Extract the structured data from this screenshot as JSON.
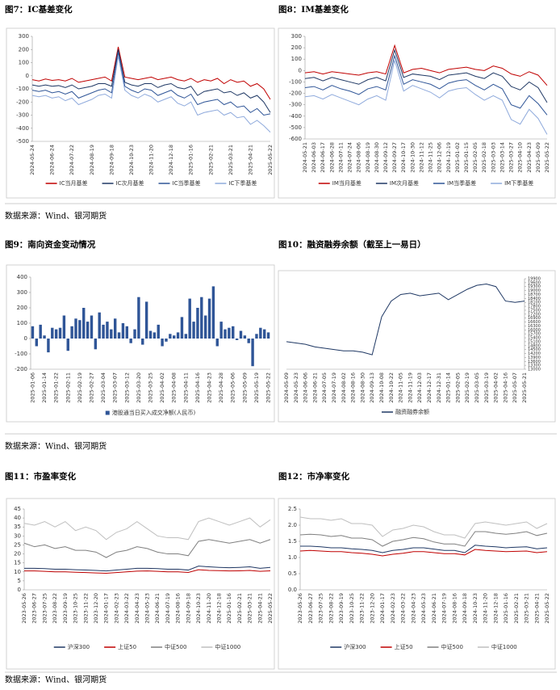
{
  "sources": [
    "数据来源：Wind、银河期货",
    "数据来源：Wind、银河期货",
    "数据来源：Wind、银河期货"
  ],
  "chart_data": [
    {
      "type": "line",
      "title": "图7：IC基差变化",
      "categories": [
        "2024-05-24",
        null,
        null,
        "2024-06-24",
        null,
        null,
        "2024-07-22",
        null,
        null,
        "2024-08-19",
        null,
        null,
        "2024-09-18",
        null,
        null,
        "2024-10-23",
        null,
        null,
        "2024-11-20",
        null,
        null,
        "2024-12-18",
        null,
        null,
        "2025-01-16",
        null,
        null,
        "2025-02-21",
        null,
        null,
        "2025-03-21",
        null,
        null,
        "2025-04-21",
        null,
        null,
        "2025-05-22"
      ],
      "series": [
        {
          "name": "IC当月基差",
          "color": "#c00000",
          "values": [
            -30,
            -40,
            -25,
            -35,
            -30,
            -40,
            -20,
            -50,
            -40,
            -30,
            -20,
            -10,
            -40,
            220,
            -10,
            -20,
            -30,
            -20,
            -10,
            -30,
            -20,
            -10,
            -30,
            -40,
            -20,
            -50,
            -30,
            -40,
            -20,
            -60,
            -30,
            -50,
            -40,
            -80,
            -60,
            -100,
            -180
          ]
        },
        {
          "name": "IC次月基差",
          "color": "#1f3864",
          "values": [
            -70,
            -80,
            -70,
            -80,
            -75,
            -90,
            -70,
            -100,
            -90,
            -80,
            -60,
            -60,
            -80,
            200,
            -50,
            -70,
            -80,
            -60,
            -60,
            -90,
            -70,
            -60,
            -90,
            -100,
            -80,
            -150,
            -120,
            -110,
            -100,
            -130,
            -120,
            -150,
            -130,
            -170,
            -150,
            -200,
            -280
          ]
        },
        {
          "name": "IC当季基差",
          "color": "#2f5597",
          "values": [
            -110,
            -120,
            -110,
            -130,
            -120,
            -140,
            -120,
            -170,
            -150,
            -130,
            -110,
            -100,
            -130,
            180,
            -80,
            -110,
            -130,
            -100,
            -110,
            -150,
            -130,
            -110,
            -150,
            -170,
            -140,
            -220,
            -200,
            -190,
            -180,
            -220,
            -200,
            -240,
            -230,
            -280,
            -250,
            -300,
            -290
          ]
        },
        {
          "name": "IC下季基差",
          "color": "#8faadc",
          "values": [
            -150,
            -160,
            -150,
            -170,
            -160,
            -190,
            -170,
            -220,
            -200,
            -180,
            -150,
            -140,
            -170,
            150,
            -110,
            -150,
            -170,
            -140,
            -160,
            -200,
            -180,
            -160,
            -210,
            -230,
            -200,
            -300,
            -280,
            -270,
            -260,
            -300,
            -280,
            -320,
            -310,
            -370,
            -340,
            -380,
            -430
          ]
        }
      ],
      "ylim": [
        -500,
        300
      ],
      "yticks": [
        300,
        200,
        100,
        0,
        -100,
        -200,
        -300,
        -400,
        -500
      ]
    },
    {
      "type": "line",
      "title": "图8：IM基差变化",
      "categories": [
        "2024-05-21",
        "2024-06-03",
        "2024-06-17",
        "2024-06-28",
        "2024-07-11",
        "2024-07-24",
        "2024-08-06",
        "2024-08-19",
        "2024-08-30",
        "2024-09-12",
        "2024-09-27",
        "2024-10-17",
        "2024-10-30",
        "2024-11-12",
        "2024-11-25",
        "2024-12-06",
        "2024-12-19",
        "2025-01-02",
        "2025-01-15",
        "2025-02-05",
        "2025-02-18",
        "2025-03-03",
        "2025-03-14",
        "2025-03-27",
        "2025-04-10",
        "2025-04-23",
        "2025-05-09",
        "2025-05-22"
      ],
      "series": [
        {
          "name": "IM当月基差",
          "color": "#c00000",
          "values": [
            -20,
            -10,
            -30,
            -10,
            -20,
            -30,
            -40,
            -20,
            -10,
            -30,
            220,
            -20,
            10,
            20,
            0,
            -20,
            10,
            20,
            30,
            10,
            0,
            40,
            20,
            -30,
            -50,
            -10,
            -40,
            -130
          ]
        },
        {
          "name": "IM次月基差",
          "color": "#1f3864",
          "values": [
            -70,
            -60,
            -90,
            -60,
            -80,
            -100,
            -120,
            -80,
            -60,
            -90,
            180,
            -60,
            -30,
            -40,
            -50,
            -80,
            -40,
            -30,
            -20,
            -50,
            -70,
            -20,
            -50,
            -140,
            -170,
            -100,
            -150,
            -280
          ]
        },
        {
          "name": "IM当季基差",
          "color": "#2f5597",
          "values": [
            -150,
            -140,
            -170,
            -130,
            -160,
            -180,
            -210,
            -160,
            -140,
            -170,
            130,
            -120,
            -80,
            -100,
            -120,
            -160,
            -110,
            -90,
            -80,
            -130,
            -170,
            -120,
            -160,
            -300,
            -330,
            -220,
            -290,
            -390
          ]
        },
        {
          "name": "IM下季基差",
          "color": "#8faadc",
          "values": [
            -230,
            -220,
            -250,
            -210,
            -240,
            -270,
            -300,
            -250,
            -220,
            -260,
            90,
            -180,
            -130,
            -160,
            -190,
            -240,
            -180,
            -160,
            -150,
            -210,
            -260,
            -220,
            -260,
            -430,
            -470,
            -340,
            -420,
            -560
          ]
        }
      ],
      "ylim": [
        -600,
        300
      ],
      "yticks": [
        300,
        200,
        100,
        0,
        -100,
        -200,
        -300,
        -400,
        -500,
        -600
      ]
    },
    {
      "type": "bar",
      "title": "图9：南向资金变动情况",
      "categories": [
        "2025-01-06",
        null,
        null,
        "2025-01-14",
        null,
        null,
        "2025-01-22",
        null,
        null,
        "2025-02-11",
        null,
        null,
        "2025-02-19",
        null,
        null,
        "2025-02-27",
        null,
        null,
        "2025-03-04",
        null,
        null,
        "2025-03-07",
        null,
        null,
        "2025-03-12",
        null,
        null,
        "2025-03-20",
        null,
        null,
        "2025-03-25",
        null,
        null,
        "2025-04-02",
        null,
        null,
        "2025-04-08",
        null,
        null,
        "2025-04-11",
        null,
        null,
        "2025-04-16",
        null,
        null,
        "2025-04-23",
        null,
        null,
        "2025-04-28",
        null,
        null,
        "2025-05-06",
        null,
        null,
        "2025-05-09",
        null,
        null,
        "2025-05-19",
        null,
        null,
        "2025-05-22"
      ],
      "series": [
        {
          "name": "港股通当日买入成交净额(人民币)",
          "color": "#2f5597",
          "values": [
            80,
            -50,
            90,
            20,
            -90,
            70,
            60,
            70,
            150,
            -80,
            80,
            130,
            120,
            200,
            110,
            150,
            -70,
            170,
            90,
            110,
            60,
            130,
            40,
            100,
            80,
            -30,
            60,
            270,
            -40,
            240,
            50,
            40,
            90,
            -50,
            -20,
            30,
            20,
            40,
            140,
            30,
            260,
            110,
            200,
            270,
            150,
            260,
            340,
            -50,
            110,
            60,
            70,
            80,
            -10,
            50,
            20,
            -30,
            -180,
            30,
            70,
            60,
            40
          ]
        }
      ],
      "ylim": [
        -200,
        400
      ],
      "yticks": [
        400,
        300,
        200,
        100,
        0,
        -100,
        -200
      ]
    },
    {
      "type": "line",
      "title": "图10：融资融券余额（截至上一易日）",
      "y_axis_position": "right",
      "categories": [
        "2024-05-09",
        "2024-05-23",
        "2024-06-06",
        "2024-06-21",
        "2024-07-05",
        "2024-07-19",
        "2024-08-02",
        "2024-08-16",
        "2024-08-30",
        "2024-09-13",
        "2024-10-08",
        "2024-10-22",
        "2024-11-05",
        "2024-11-19",
        "2024-12-03",
        "2024-12-17",
        "2024-12-31",
        "2025-01-14",
        "2025-02-05",
        "2025-02-19",
        "2025-03-05",
        "2025-03-19",
        "2025-04-02",
        "2025-04-16",
        "2025-05-07",
        "2025-05-21"
      ],
      "series": [
        {
          "name": "融资融券余额",
          "color": "#1f3864",
          "values": [
            15100,
            15000,
            14900,
            14700,
            14600,
            14500,
            14400,
            14400,
            14300,
            14100,
            17000,
            18200,
            18700,
            18800,
            18600,
            18700,
            18800,
            18300,
            18700,
            19100,
            19400,
            19500,
            19300,
            18200,
            18100,
            18200
          ]
        }
      ],
      "ylim": [
        13000,
        19900
      ],
      "yticks": [
        19900,
        19600,
        19300,
        19000,
        18700,
        18400,
        18100,
        17800,
        17500,
        17200,
        16900,
        16600,
        16300,
        16000,
        15700,
        15400,
        15100,
        14800,
        14500,
        14200,
        13900,
        13600,
        13300,
        13000
      ]
    },
    {
      "type": "line",
      "title": "图11：市盈率变化",
      "categories": [
        "2023-05-26",
        "2023-06-27",
        "2023-07-25",
        "2023-08-22",
        "2023-09-19",
        "2023-10-25",
        "2023-11-22",
        "2023-12-20",
        "2024-01-17",
        "2024-02-23",
        "2024-03-22",
        "2024-04-23",
        "2024-05-23",
        "2024-06-21",
        "2024-07-19",
        "2024-08-16",
        "2024-09-18",
        "2024-10-23",
        "2024-11-20",
        "2024-12-18",
        "2025-01-16",
        "2025-02-21",
        "2025-03-21",
        "2025-04-21",
        "2025-05-22"
      ],
      "series": [
        {
          "name": "沪深300",
          "color": "#1f3864",
          "values": [
            12,
            12,
            11.8,
            11.5,
            11.5,
            11.2,
            11,
            10.8,
            10.5,
            11,
            11.5,
            12,
            12,
            11.8,
            11.5,
            11.5,
            11,
            13.2,
            12.8,
            12.5,
            12.3,
            12.5,
            12.8,
            12,
            12.5
          ]
        },
        {
          "name": "上证50",
          "color": "#c00000",
          "values": [
            10.5,
            10.5,
            10.3,
            10,
            10,
            9.8,
            9.6,
            9.4,
            9.2,
            9.6,
            10,
            10.4,
            10.5,
            10.3,
            10,
            10,
            9.7,
            11.2,
            10.8,
            10.7,
            10.5,
            10.6,
            10.8,
            10.3,
            10.6
          ]
        },
        {
          "name": "中证500",
          "color": "#7f7f7f",
          "values": [
            26,
            24,
            25,
            23,
            24,
            22,
            22,
            21,
            18,
            21,
            22,
            24,
            23,
            21,
            20,
            20,
            19,
            27,
            28,
            27,
            26,
            27,
            28,
            26,
            28
          ]
        },
        {
          "name": "中证1000",
          "color": "#bfbfbf",
          "values": [
            37,
            36,
            38,
            35,
            38,
            33,
            35,
            33,
            28,
            32,
            34,
            38,
            34,
            30,
            29,
            29,
            28,
            38,
            40,
            38,
            36,
            38,
            40,
            35,
            39
          ]
        }
      ],
      "ylim": [
        0,
        45
      ],
      "yticks": [
        45,
        40,
        35,
        30,
        25,
        20,
        15,
        10,
        5,
        0
      ]
    },
    {
      "type": "line",
      "title": "图12：市净率变化",
      "categories": [
        "2023-05-26",
        "2023-06-27",
        "2023-07-25",
        "2023-08-22",
        "2023-09-19",
        "2023-10-25",
        "2023-11-22",
        "2023-12-20",
        "2024-01-17",
        "2024-02-23",
        "2024-03-22",
        "2024-04-23",
        "2024-05-23",
        "2024-06-21",
        "2024-07-19",
        "2024-08-16",
        "2024-09-18",
        "2024-10-23",
        "2024-11-20",
        "2024-12-18",
        "2025-01-16",
        "2025-02-21",
        "2025-03-21",
        "2025-04-21",
        "2025-05-22"
      ],
      "series": [
        {
          "name": "沪深300",
          "color": "#1f3864",
          "values": [
            1.35,
            1.35,
            1.33,
            1.3,
            1.3,
            1.27,
            1.25,
            1.22,
            1.15,
            1.22,
            1.25,
            1.3,
            1.3,
            1.26,
            1.22,
            1.22,
            1.15,
            1.38,
            1.35,
            1.33,
            1.3,
            1.32,
            1.33,
            1.27,
            1.3
          ]
        },
        {
          "name": "上证50",
          "color": "#c00000",
          "values": [
            1.2,
            1.22,
            1.2,
            1.18,
            1.18,
            1.15,
            1.13,
            1.1,
            1.05,
            1.1,
            1.13,
            1.18,
            1.18,
            1.15,
            1.12,
            1.12,
            1.08,
            1.25,
            1.22,
            1.2,
            1.18,
            1.19,
            1.2,
            1.15,
            1.18
          ]
        },
        {
          "name": "中证500",
          "color": "#7f7f7f",
          "values": [
            1.7,
            1.72,
            1.7,
            1.65,
            1.68,
            1.6,
            1.6,
            1.55,
            1.35,
            1.5,
            1.55,
            1.62,
            1.58,
            1.48,
            1.42,
            1.42,
            1.35,
            1.8,
            1.8,
            1.75,
            1.72,
            1.75,
            1.8,
            1.68,
            1.75
          ]
        },
        {
          "name": "中证1000",
          "color": "#bfbfbf",
          "values": [
            2.25,
            2.2,
            2.2,
            2.15,
            2.2,
            2.05,
            2.05,
            2.0,
            1.65,
            1.85,
            1.9,
            2.0,
            1.95,
            1.8,
            1.7,
            1.7,
            1.6,
            2.05,
            2.1,
            2.05,
            2.0,
            2.05,
            2.1,
            1.9,
            2.05
          ]
        }
      ],
      "ylim": [
        0,
        2.5
      ],
      "yticks": [
        2.5,
        {
          "value": 2,
          "label": "2.0"
        },
        1.5,
        {
          "value": 1,
          "label": "1.0"
        },
        0.5,
        {
          "value": 0,
          "label": "0.0"
        }
      ]
    }
  ]
}
